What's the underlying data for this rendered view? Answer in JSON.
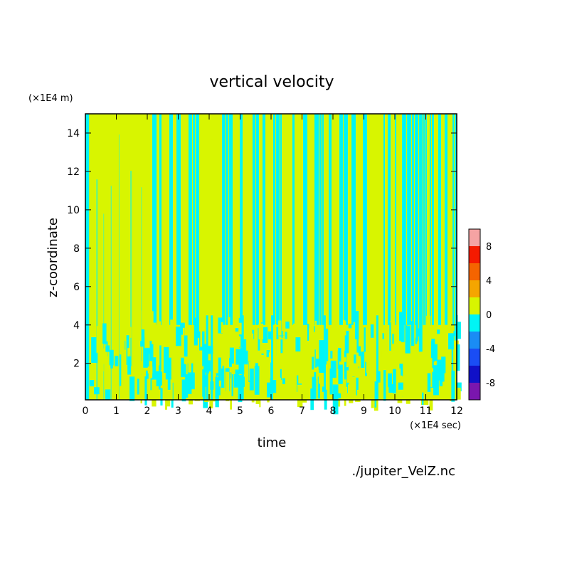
{
  "chart_data": {
    "type": "heatmap",
    "title": "vertical velocity",
    "xlabel": "time",
    "ylabel": "z-coordinate",
    "x_unit": "(×1E4 sec)",
    "y_unit": "(×1E4 m)",
    "xlim": [
      0,
      12
    ],
    "ylim": [
      0.1,
      15
    ],
    "x_ticks": [
      0,
      1,
      2,
      3,
      4,
      5,
      6,
      7,
      8,
      9,
      10,
      11,
      12
    ],
    "y_ticks": [
      2,
      4,
      6,
      8,
      10,
      12,
      14
    ],
    "colorbar": {
      "levels": [
        -10,
        -8,
        -6,
        -4,
        -2,
        0,
        2,
        4,
        6,
        8,
        10
      ],
      "tick_labels": [
        "-8",
        "-4",
        "0",
        "4",
        "8"
      ],
      "colors": [
        "#7a16ae",
        "#1010c8",
        "#1a4df5",
        "#1a8cf5",
        "#00f5f5",
        "#d8f500",
        "#f5a500",
        "#f56400",
        "#f51a00",
        "#f5a3a3"
      ]
    },
    "pattern_note": "Values mostly between -2 and 2: large positive (yellow-green) region from t≈0.1–2.0 above z≈4; alternating thin vertical bands of +/- (yellow-green / cyan) elsewhere; noisy mix below z≈4."
  },
  "footer": {
    "source_file": "./jupiter_VelZ.nc"
  }
}
